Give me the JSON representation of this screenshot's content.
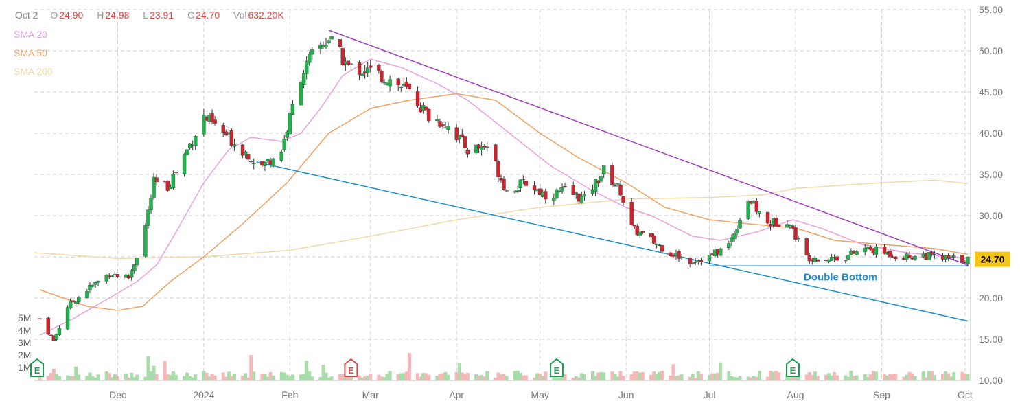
{
  "legend": {
    "date": "Oct 2",
    "open_label": "O",
    "open": "24.90",
    "high_label": "H",
    "high": "24.98",
    "low_label": "L",
    "low": "23.91",
    "close_label": "C",
    "close": "24.70",
    "vol_label": "Vol",
    "vol": "632.20K"
  },
  "colors": {
    "up": "#22b14c",
    "down": "#d0212c",
    "sma20": "#e8a0e0",
    "sma50": "#f0a060",
    "sma200": "#f0d9a8",
    "upper_trend": "#a040c0",
    "lower_trend": "#1a8fd0",
    "vol_up": "#a8dca8",
    "vol_down": "#f4b8b8"
  },
  "chart_data": {
    "type": "candlestick",
    "y_price_range": [
      10,
      55
    ],
    "y_ticks": [
      "55.00",
      "50.00",
      "45.00",
      "40.00",
      "35.00",
      "30.00",
      "25.00",
      "20.00",
      "15.00",
      "10.00"
    ],
    "y_tick_values": [
      55,
      50,
      45,
      40,
      35,
      30,
      25,
      20,
      15,
      10
    ],
    "x_tick_labels": [
      "Dec",
      "2024",
      "Feb",
      "Mar",
      "Apr",
      "May",
      "Jun",
      "Jul",
      "Aug",
      "Sep",
      "Oct"
    ],
    "x_tick_dates": [
      "2023-12-01",
      "2024-01-01",
      "2024-02-01",
      "2024-03-01",
      "2024-04-01",
      "2024-05-01",
      "2024-06-01",
      "2024-07-01",
      "2024-08-01",
      "2024-09-01",
      "2024-10-01"
    ],
    "date_range": [
      "2023-11-01",
      "2024-10-03"
    ],
    "volume_ticks": [
      "5M",
      "4M",
      "3M",
      "2M",
      "1M"
    ],
    "volume_tick_values": [
      5000000,
      4000000,
      3000000,
      2000000,
      1000000
    ],
    "last_price": "24.70",
    "indicators": [
      {
        "name": "SMA 20"
      },
      {
        "name": "SMA 50"
      },
      {
        "name": "SMA 200"
      }
    ],
    "sma20": [
      [
        "2023-11-03",
        15.5
      ],
      [
        "2023-11-15",
        17.5
      ],
      [
        "2023-11-28",
        20
      ],
      [
        "2023-12-08",
        22
      ],
      [
        "2023-12-15",
        24
      ],
      [
        "2023-12-22",
        28
      ],
      [
        "2024-01-01",
        34
      ],
      [
        "2024-01-10",
        38
      ],
      [
        "2024-01-18",
        39.5
      ],
      [
        "2024-01-29",
        39
      ],
      [
        "2024-02-05",
        40
      ],
      [
        "2024-02-12",
        43
      ],
      [
        "2024-02-20",
        47
      ],
      [
        "2024-03-01",
        49
      ],
      [
        "2024-03-12",
        48
      ],
      [
        "2024-03-25",
        46
      ],
      [
        "2024-04-05",
        44
      ],
      [
        "2024-04-20",
        40
      ],
      [
        "2024-05-05",
        36
      ],
      [
        "2024-05-20",
        33
      ],
      [
        "2024-06-01",
        31
      ],
      [
        "2024-06-10",
        30
      ],
      [
        "2024-06-25",
        27.5
      ],
      [
        "2024-07-05",
        27
      ],
      [
        "2024-07-18",
        28
      ],
      [
        "2024-07-31",
        29.5
      ],
      [
        "2024-08-10",
        28.5
      ],
      [
        "2024-08-25",
        26.5
      ],
      [
        "2024-09-10",
        25.5
      ],
      [
        "2024-10-02",
        24.8
      ]
    ],
    "sma50": [
      [
        "2023-11-03",
        21
      ],
      [
        "2023-11-20",
        19
      ],
      [
        "2023-12-01",
        18.5
      ],
      [
        "2023-12-10",
        19
      ],
      [
        "2023-12-20",
        22
      ],
      [
        "2024-01-01",
        25
      ],
      [
        "2024-01-15",
        29
      ],
      [
        "2024-01-31",
        34
      ],
      [
        "2024-02-15",
        40
      ],
      [
        "2024-03-01",
        43
      ],
      [
        "2024-03-15",
        44
      ],
      [
        "2024-04-01",
        44.8
      ],
      [
        "2024-04-15",
        44
      ],
      [
        "2024-05-01",
        40
      ],
      [
        "2024-05-15",
        37
      ],
      [
        "2024-06-01",
        34
      ],
      [
        "2024-06-15",
        31
      ],
      [
        "2024-07-01",
        29.5
      ],
      [
        "2024-07-15",
        29
      ],
      [
        "2024-08-01",
        28.5
      ],
      [
        "2024-08-15",
        27
      ],
      [
        "2024-09-01",
        26.5
      ],
      [
        "2024-09-20",
        26
      ],
      [
        "2024-10-02",
        25.3
      ]
    ],
    "sma200": [
      [
        "2023-11-01",
        25.5
      ],
      [
        "2023-12-01",
        24.8
      ],
      [
        "2024-01-01",
        25
      ],
      [
        "2024-02-01",
        25.8
      ],
      [
        "2024-03-01",
        27.5
      ],
      [
        "2024-04-01",
        29.5
      ],
      [
        "2024-05-01",
        31
      ],
      [
        "2024-06-01",
        32
      ],
      [
        "2024-07-01",
        32.2
      ],
      [
        "2024-07-20",
        32.5
      ],
      [
        "2024-08-01",
        33.3
      ],
      [
        "2024-09-01",
        34
      ],
      [
        "2024-09-20",
        34.3
      ],
      [
        "2024-10-02",
        33.9
      ]
    ],
    "upper_trendline": [
      [
        "2024-02-15",
        52.5
      ],
      [
        "2024-10-02",
        24
      ]
    ],
    "lower_trendline": [
      [
        "2024-01-20",
        36.5
      ],
      [
        "2024-10-02",
        17.2
      ]
    ],
    "support_line": [
      [
        "2024-07-01",
        23.9
      ],
      [
        "2024-10-02",
        23.9
      ]
    ],
    "annotation": {
      "text": "Double Bottom",
      "date": "2024-08-01",
      "price": 22.8
    },
    "earnings_markers": [
      {
        "date": "2023-11-02",
        "label": "E",
        "color": "#1a9f50"
      },
      {
        "date": "2024-02-23",
        "label": "E",
        "color": "#e04848"
      },
      {
        "date": "2024-05-07",
        "label": "E",
        "color": "#1a9f50"
      },
      {
        "date": "2024-07-31",
        "label": "E",
        "color": "#1a9f50"
      }
    ],
    "anchors": [
      [
        "2023-11-03",
        17.5
      ],
      [
        "2023-11-08",
        14.8
      ],
      [
        "2023-11-13",
        19
      ],
      [
        "2023-11-20",
        21
      ],
      [
        "2023-11-28",
        23
      ],
      [
        "2023-12-05",
        22.5
      ],
      [
        "2023-12-10",
        27
      ],
      [
        "2023-12-14",
        34
      ],
      [
        "2023-12-19",
        33.5
      ],
      [
        "2023-12-26",
        38
      ],
      [
        "2024-01-01",
        42
      ],
      [
        "2024-01-08",
        40
      ],
      [
        "2024-01-15",
        38
      ],
      [
        "2024-01-22",
        36
      ],
      [
        "2024-01-29",
        38
      ],
      [
        "2024-02-05",
        47
      ],
      [
        "2024-02-10",
        50
      ],
      [
        "2024-02-15",
        51.5
      ],
      [
        "2024-02-22",
        48
      ],
      [
        "2024-03-01",
        47.5
      ],
      [
        "2024-03-08",
        46.5
      ],
      [
        "2024-03-15",
        45
      ],
      [
        "2024-03-22",
        42
      ],
      [
        "2024-03-29",
        41
      ],
      [
        "2024-04-05",
        38
      ],
      [
        "2024-04-12",
        38.5
      ],
      [
        "2024-04-19",
        33
      ],
      [
        "2024-04-26",
        34
      ],
      [
        "2024-05-03",
        32.5
      ],
      [
        "2024-05-10",
        33
      ],
      [
        "2024-05-17",
        32
      ],
      [
        "2024-05-24",
        35.5
      ],
      [
        "2024-05-30",
        33
      ],
      [
        "2024-06-03",
        28.5
      ],
      [
        "2024-06-10",
        27
      ],
      [
        "2024-06-17",
        25.5
      ],
      [
        "2024-06-24",
        24.5
      ],
      [
        "2024-07-01",
        25
      ],
      [
        "2024-07-08",
        26.5
      ],
      [
        "2024-07-15",
        32
      ],
      [
        "2024-07-22",
        29
      ],
      [
        "2024-07-29",
        29.5
      ],
      [
        "2024-08-05",
        25
      ],
      [
        "2024-08-12",
        24.8
      ],
      [
        "2024-08-19",
        25
      ],
      [
        "2024-08-26",
        26
      ],
      [
        "2024-09-02",
        25.5
      ],
      [
        "2024-09-09",
        25
      ],
      [
        "2024-09-16",
        25.2
      ],
      [
        "2024-09-23",
        24.8
      ],
      [
        "2024-10-02",
        24.7
      ]
    ]
  }
}
